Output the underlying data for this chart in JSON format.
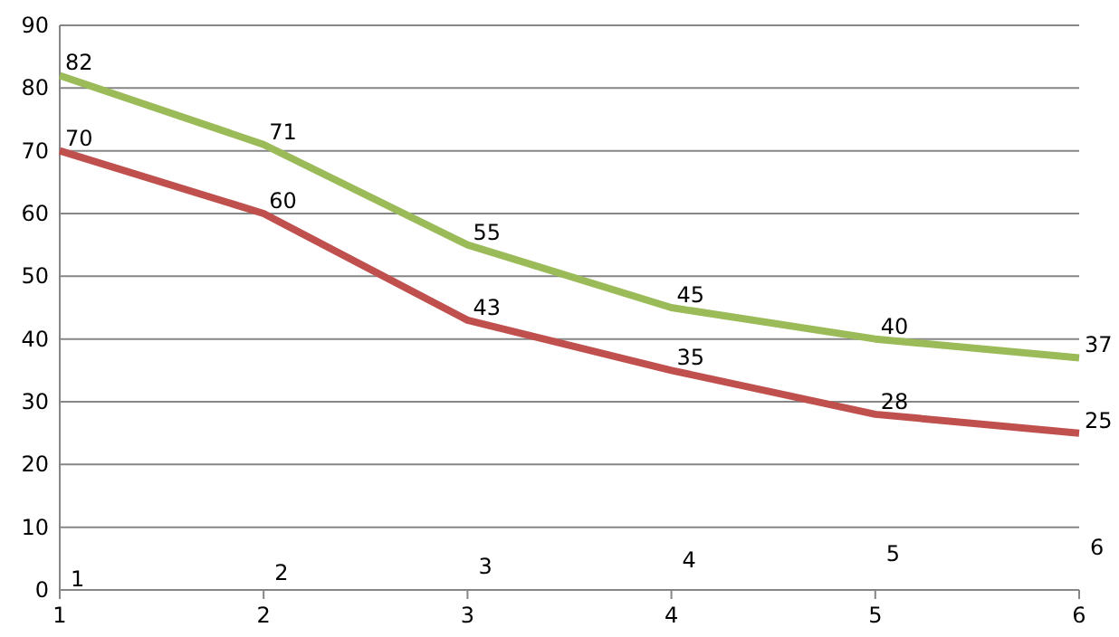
{
  "chart_data": {
    "type": "line",
    "x": [
      1,
      2,
      3,
      4,
      5,
      6
    ],
    "series": [
      {
        "color": "#9bbb59",
        "values": [
          82,
          71,
          55,
          45,
          40,
          37
        ]
      },
      {
        "color": "#c0504d",
        "values": [
          70,
          60,
          43,
          35,
          28,
          25
        ]
      }
    ],
    "xlim": [
      1,
      6
    ],
    "xticks": [
      1,
      2,
      3,
      4,
      5,
      6
    ],
    "ylim": [
      0,
      90
    ],
    "yticks": [
      0,
      10,
      20,
      30,
      40,
      50,
      60,
      70,
      80,
      90
    ],
    "grid": "y",
    "marker": "none",
    "line_style": "solid",
    "data_labels": true,
    "annotations": [
      "1",
      "2",
      "3",
      "4",
      "5",
      "6"
    ]
  }
}
